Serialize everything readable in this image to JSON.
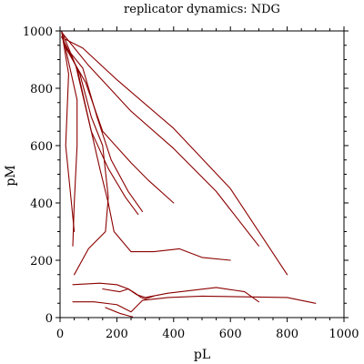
{
  "chart_data": {
    "type": "line",
    "title": "replicator dynamics: NDG",
    "xlabel": "pL",
    "ylabel": "pM",
    "xlim": [
      0,
      1000
    ],
    "ylim": [
      0,
      1000
    ],
    "x_ticks": [
      0,
      200,
      400,
      600,
      800,
      1000
    ],
    "y_ticks": [
      0,
      200,
      400,
      600,
      800,
      1000
    ],
    "grid": false,
    "legend": "none",
    "line_color": "#8b0000",
    "series": [
      {
        "points": [
          [
            20,
            970
          ],
          [
            80,
            940
          ],
          [
            200,
            830
          ],
          [
            400,
            660
          ],
          [
            600,
            450
          ],
          [
            800,
            150
          ]
        ]
      },
      {
        "points": [
          [
            10,
            990
          ],
          [
            100,
            880
          ],
          [
            250,
            720
          ],
          [
            400,
            590
          ],
          [
            550,
            440
          ],
          [
            700,
            250
          ]
        ]
      },
      {
        "points": [
          [
            15,
            950
          ],
          [
            90,
            820
          ],
          [
            150,
            650
          ],
          [
            250,
            540
          ],
          [
            310,
            480
          ],
          [
            400,
            400
          ]
        ]
      },
      {
        "points": [
          [
            15,
            950
          ],
          [
            80,
            870
          ],
          [
            130,
            700
          ],
          [
            180,
            550
          ],
          [
            240,
            440
          ],
          [
            290,
            370
          ]
        ]
      },
      {
        "points": [
          [
            5,
            980
          ],
          [
            60,
            870
          ],
          [
            110,
            650
          ],
          [
            170,
            520
          ],
          [
            230,
            420
          ],
          [
            275,
            360
          ]
        ]
      },
      {
        "points": [
          [
            5,
            1000
          ],
          [
            55,
            880
          ],
          [
            110,
            650
          ],
          [
            140,
            520
          ],
          [
            170,
            400
          ],
          [
            190,
            300
          ],
          [
            250,
            230
          ],
          [
            330,
            230
          ],
          [
            420,
            240
          ],
          [
            500,
            210
          ],
          [
            600,
            200
          ]
        ]
      },
      {
        "points": [
          [
            20,
            950
          ],
          [
            70,
            850
          ],
          [
            110,
            700
          ],
          [
            150,
            600
          ],
          [
            170,
            420
          ],
          [
            160,
            300
          ],
          [
            100,
            240
          ],
          [
            50,
            150
          ]
        ]
      },
      {
        "points": [
          [
            10,
            980
          ],
          [
            60,
            760
          ],
          [
            60,
            600
          ],
          [
            50,
            400
          ],
          [
            45,
            250
          ]
        ]
      },
      {
        "points": [
          [
            5,
            1000
          ],
          [
            30,
            850
          ],
          [
            20,
            600
          ],
          [
            40,
            400
          ],
          [
            50,
            300
          ]
        ]
      },
      {
        "points": [
          [
            45,
            115
          ],
          [
            140,
            120
          ],
          [
            200,
            115
          ],
          [
            240,
            100
          ],
          [
            270,
            80
          ],
          [
            300,
            70
          ],
          [
            380,
            85
          ],
          [
            550,
            105
          ],
          [
            650,
            90
          ],
          [
            700,
            55
          ]
        ]
      },
      {
        "points": [
          [
            45,
            55
          ],
          [
            120,
            55
          ],
          [
            200,
            45
          ],
          [
            250,
            20
          ],
          [
            290,
            60
          ],
          [
            380,
            70
          ],
          [
            500,
            75
          ],
          [
            800,
            70
          ],
          [
            900,
            50
          ]
        ]
      },
      {
        "points": [
          [
            150,
            100
          ],
          [
            210,
            90
          ],
          [
            240,
            100
          ],
          [
            265,
            85
          ],
          [
            285,
            70
          ],
          [
            300,
            65
          ],
          [
            330,
            75
          ]
        ]
      },
      {
        "points": [
          [
            160,
            35
          ],
          [
            210,
            15
          ],
          [
            245,
            5
          ],
          [
            255,
            3
          ]
        ]
      }
    ]
  }
}
